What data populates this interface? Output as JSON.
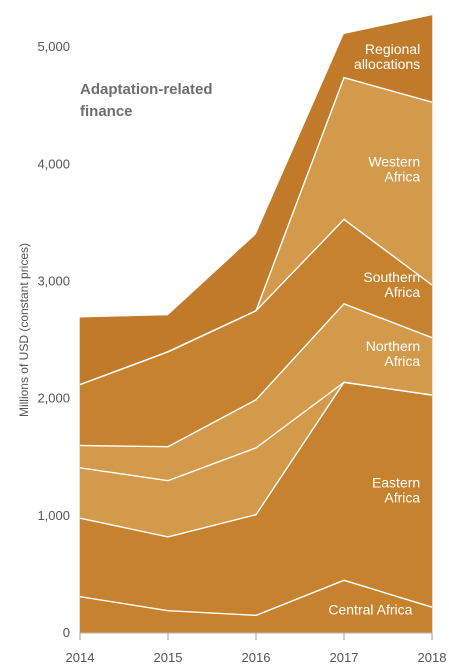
{
  "chart_data": {
    "type": "area",
    "title": "Adaptation-related finance",
    "title_lines": [
      "Adaptation-related",
      "finance"
    ],
    "ylabel": "Millions of USD (constant prices)",
    "xlabel": "",
    "x": [
      "2014",
      "2015",
      "2016",
      "2017",
      "2018"
    ],
    "ylim": [
      0,
      5300
    ],
    "yticks": [
      "0",
      "1,000",
      "2,000",
      "3,000",
      "4,000",
      "5,000"
    ],
    "ytick_values": [
      0,
      1000,
      2000,
      3000,
      4000,
      5000
    ],
    "stacked": true,
    "grid": false,
    "legend": "inline labels",
    "series": [
      {
        "name": "Central Africa",
        "label_lines": [
          "Central Africa"
        ],
        "values": [
          310,
          190,
          150,
          450,
          220
        ],
        "color": "#c6822f"
      },
      {
        "name": "Eastern Africa",
        "label_lines": [
          "Eastern",
          "Africa"
        ],
        "values": [
          670,
          630,
          860,
          1690,
          1810
        ],
        "color": "#c6822f"
      },
      {
        "name": "",
        "label_lines": [],
        "values": [
          430,
          480,
          570,
          0,
          0
        ],
        "color": "#d39a4c"
      },
      {
        "name": "Northern Africa",
        "label_lines": [
          "Northern",
          "Africa"
        ],
        "values": [
          190,
          290,
          410,
          670,
          490
        ],
        "color": "#d39a4c"
      },
      {
        "name": "Southern Africa",
        "label_lines": [
          "Southern",
          "Africa"
        ],
        "values": [
          520,
          810,
          760,
          720,
          450
        ],
        "color": "#c6822f"
      },
      {
        "name": "Western Africa",
        "label_lines": [
          "Western",
          "Africa"
        ],
        "values": [
          0,
          0,
          0,
          1210,
          1560
        ],
        "color": "#d39a4c"
      },
      {
        "name": "Regional allocations",
        "label_lines": [
          "Regional",
          "allocations"
        ],
        "values": [
          570,
          310,
          650,
          370,
          740
        ],
        "color": "#c17a2a"
      }
    ]
  }
}
